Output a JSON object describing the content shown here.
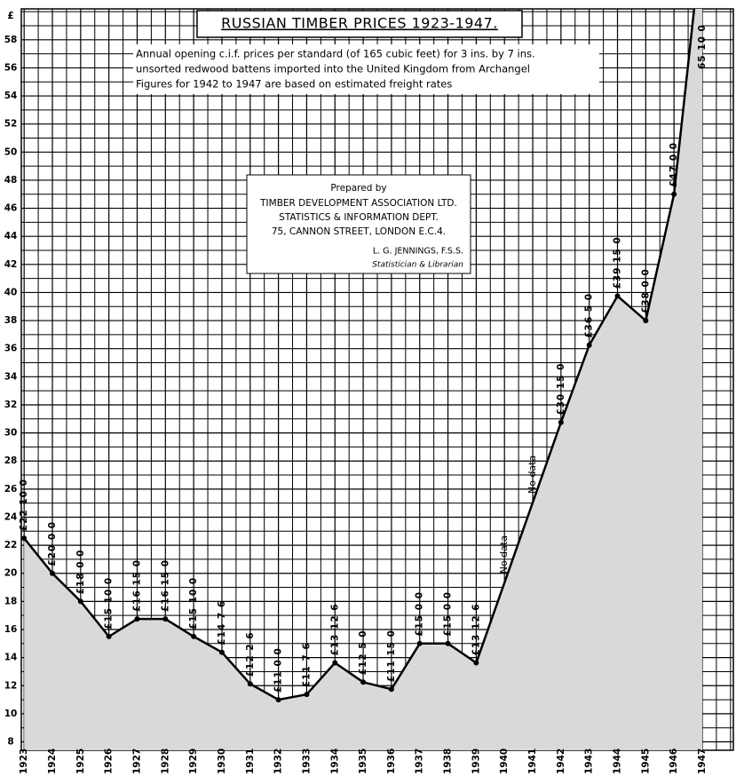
{
  "chart_data": {
    "type": "line",
    "title": "RUSSIAN TIMBER PRICES 1923-1947.",
    "subtitle": [
      "Annual opening c.i.f. prices per standard (of 165 cubic feet) for 3 ins. by 7 ins.",
      "unsorted redwood battens imported into the United Kingdom from Archangel",
      "Figures for 1942 to 1947 are based on estimated freight rates"
    ],
    "credit": [
      "Prepared by",
      "TIMBER DEVELOPMENT ASSOCIATION LTD.",
      "STATISTICS & INFORMATION DEPT.",
      "75, CANNON STREET, LONDON E.C.4.",
      "L. G. JENNINGS, F.S.S.",
      "Statistician & Librarian"
    ],
    "y_label": "£",
    "x": [
      1923,
      1924,
      1925,
      1926,
      1927,
      1928,
      1929,
      1930,
      1931,
      1932,
      1933,
      1934,
      1935,
      1936,
      1937,
      1938,
      1939,
      1942,
      1943,
      1944,
      1945,
      1946,
      1947
    ],
    "values": [
      22.5,
      20,
      18,
      15.5,
      16.75,
      16.75,
      15.5,
      14.375,
      12.125,
      11,
      11.375,
      13.625,
      12.25,
      11.75,
      15,
      15,
      13.625,
      30.75,
      36.25,
      39.75,
      38,
      47,
      65.5
    ],
    "value_labels": [
      "£22 10 0",
      "£20 0 0",
      "£18 0 0",
      "£15 10 0",
      "£16 15 0",
      "£16 15 0",
      "£15 10 0",
      "£14 7 6",
      "£12 2 6",
      "£11 0 0",
      "£11 7 6",
      "£13 12 6",
      "£12 5 0",
      "£11 15 0",
      "£15 0 0",
      "£15 0 0",
      "£13 12 6",
      "£30 15 0",
      "£36 5 0",
      "£39 15 0",
      "£38 0 0",
      "£47 0 0",
      "65 10 0"
    ],
    "annotations": [
      {
        "text": "No data",
        "x": 1940
      },
      {
        "text": "No data",
        "x": 1941
      }
    ],
    "color": "#000000",
    "fill_color": "#d9d9d9",
    "xlim": [
      1922.9,
      1948.1
    ],
    "xticks": [
      1923,
      1924,
      1925,
      1926,
      1927,
      1928,
      1929,
      1930,
      1931,
      1932,
      1933,
      1934,
      1935,
      1936,
      1937,
      1938,
      1939,
      1940,
      1941,
      1942,
      1943,
      1944,
      1945,
      1946,
      1947
    ],
    "ylim": [
      7.4,
      60.2
    ],
    "yticks": [
      8,
      10,
      12,
      14,
      16,
      18,
      20,
      22,
      24,
      26,
      28,
      30,
      32,
      34,
      36,
      38,
      40,
      42,
      44,
      46,
      48,
      50,
      52,
      54,
      56,
      58
    ],
    "grid": true
  }
}
